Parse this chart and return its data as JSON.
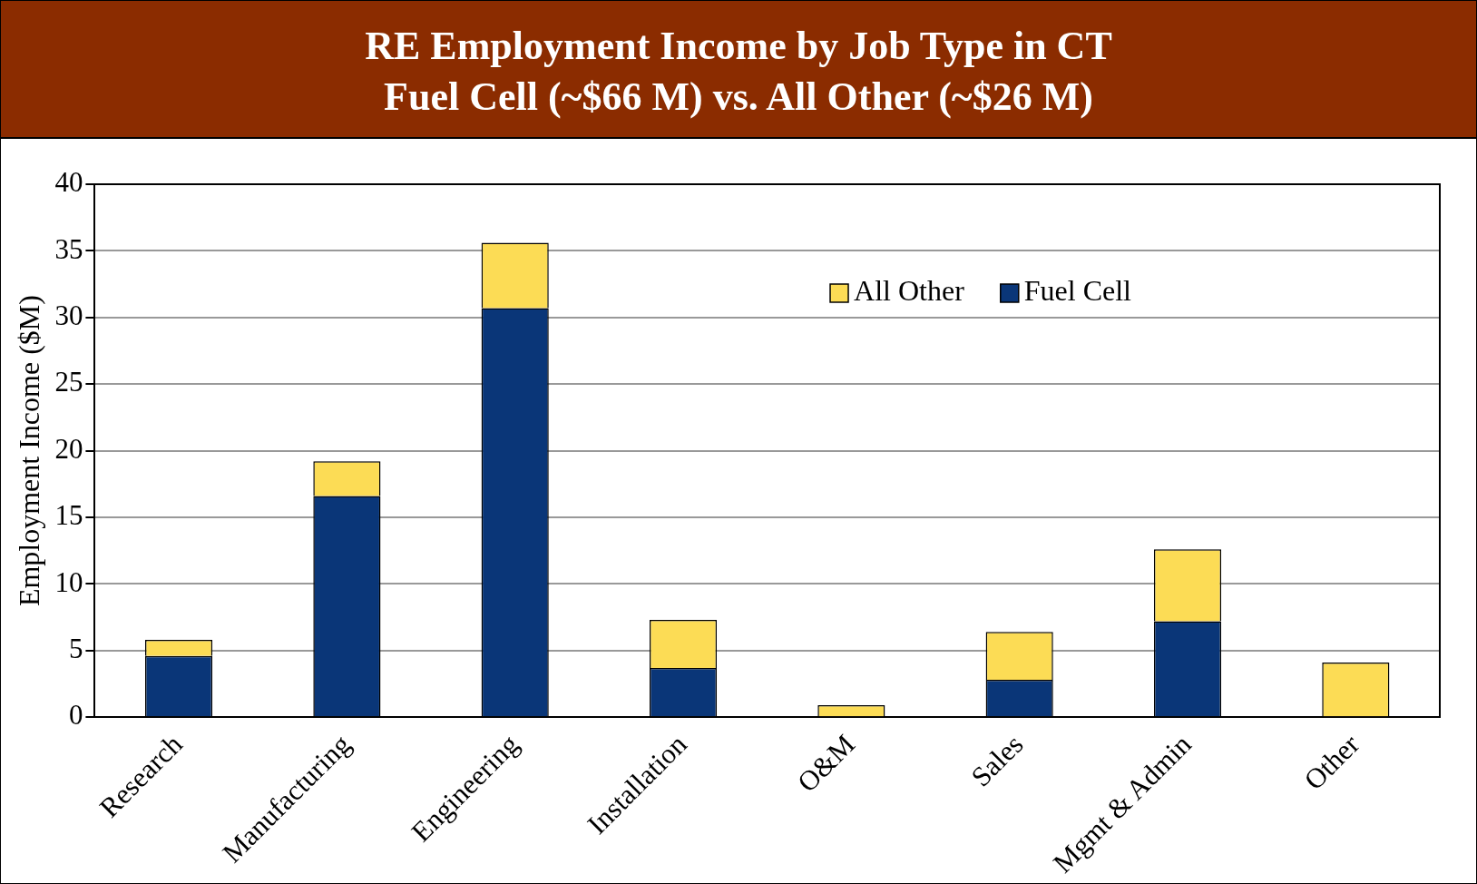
{
  "chart_data": {
    "type": "bar",
    "title": "RE Employment Income by Job Type in CT",
    "subtitle": "Fuel Cell (~$66 M) vs. All Other (~$26 M)",
    "ylabel": "Employment Income ($M)",
    "categories": [
      "Research",
      "Manufacturing",
      "Engineering",
      "Installation",
      "O&M",
      "Sales",
      "Mgmt & Admin",
      "Other"
    ],
    "series": [
      {
        "name": "Fuel Cell",
        "color": "#0a3678",
        "values": [
          4.6,
          16.6,
          30.7,
          3.7,
          0,
          2.8,
          7.2,
          0
        ]
      },
      {
        "name": "All Other",
        "color": "#fcdc55",
        "values": [
          1.2,
          2.6,
          4.9,
          3.6,
          0.9,
          3.6,
          5.4,
          4.1
        ]
      }
    ],
    "stacked": true,
    "ylim": [
      0,
      40
    ],
    "yticks": [
      0,
      5,
      10,
      15,
      20,
      25,
      30,
      35,
      40
    ],
    "grid": "y",
    "legend": "top right"
  }
}
